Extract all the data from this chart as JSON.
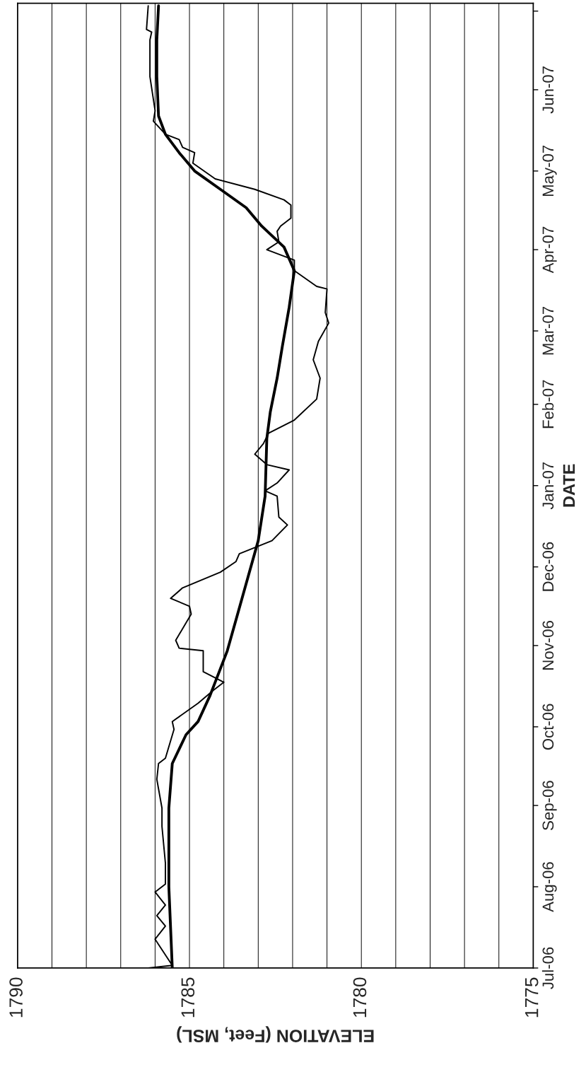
{
  "chart_data": {
    "type": "line",
    "orientation": "horizontal",
    "xlabel": "ELEVATION (Feet, MSL)",
    "ylabel": "DATE",
    "xlim": [
      1790,
      1775
    ],
    "xticks": [
      1790,
      {
        "value": 1789,
        "label": null
      },
      {
        "value": 1788,
        "label": null
      },
      {
        "value": 1787,
        "label": null
      },
      {
        "value": 1786,
        "label": null
      },
      1785,
      {
        "value": 1784,
        "label": null
      },
      {
        "value": 1783,
        "label": null
      },
      {
        "value": 1782,
        "label": null
      },
      {
        "value": 1781,
        "label": null
      },
      1780,
      {
        "value": 1779,
        "label": null
      },
      {
        "value": 1778,
        "label": null
      },
      {
        "value": 1777,
        "label": null
      },
      {
        "value": 1776,
        "label": null
      },
      1775
    ],
    "ylim": [
      "2006-07-01",
      "2007-07-04"
    ],
    "yticks": [
      {
        "value": "2006-07-01",
        "label": "Jul-06"
      },
      {
        "value": "2006-08-01",
        "label": "Aug-06"
      },
      {
        "value": "2006-09-01",
        "label": "Sep-06"
      },
      {
        "value": "2006-10-01",
        "label": "Oct-06"
      },
      {
        "value": "2006-11-01",
        "label": "Nov-06"
      },
      {
        "value": "2006-12-01",
        "label": "Dec-06"
      },
      {
        "value": "2007-01-01",
        "label": "Jan-07"
      },
      {
        "value": "2007-02-01",
        "label": "Feb-07"
      },
      {
        "value": "2007-03-01",
        "label": "Mar-07"
      },
      {
        "value": "2007-04-01",
        "label": "Apr-07"
      },
      {
        "value": "2007-05-01",
        "label": "May-07"
      },
      {
        "value": "2007-06-01",
        "label": "Jun-07"
      },
      {
        "value": "2007-07-01",
        "label": null
      }
    ],
    "grid": "x",
    "legend": false,
    "series": [
      {
        "color": "#000000",
        "line_style": "solid",
        "x": [
          "2006-07-01",
          "2006-08-01",
          "2006-08-31",
          "2006-09-17",
          "2006-09-28",
          "2006-10-03",
          "2006-10-13",
          "2006-10-30",
          "2006-11-13",
          "2006-11-27",
          "2006-12-11",
          "2006-12-28",
          "2007-01-19",
          "2007-01-29",
          "2007-02-11",
          "2007-02-23",
          "2007-03-10",
          "2007-03-24",
          "2007-04-02",
          "2007-04-10",
          "2007-04-17",
          "2007-04-24",
          "2007-05-01",
          "2007-05-08",
          "2007-05-15",
          "2007-05-22",
          "2007-06-06",
          "2007-06-20",
          "2007-07-03"
        ],
        "values": [
          1785.5,
          1785.6,
          1785.6,
          1785.5,
          1785.1,
          1784.75,
          1784.4,
          1783.9,
          1783.6,
          1783.3,
          1783.0,
          1782.8,
          1782.75,
          1782.65,
          1782.45,
          1782.3,
          1782.1,
          1781.95,
          1782.25,
          1782.9,
          1783.35,
          1784.1,
          1784.85,
          1785.3,
          1785.7,
          1785.9,
          1785.95,
          1785.95,
          1785.9
        ]
      },
      {
        "color": "#000000",
        "line_style": "solid",
        "x": [
          "2006-07-01",
          "2006-07-02",
          "2006-07-12",
          "2006-07-17",
          "2006-07-21",
          "2006-07-25",
          "2006-07-30",
          "2006-08-02",
          "2006-08-10",
          "2006-08-24",
          "2006-08-31",
          "2006-09-11",
          "2006-09-17",
          "2006-09-19",
          "2006-09-30",
          "2006-10-03",
          "2006-10-10",
          "2006-10-15",
          "2006-10-18",
          "2006-10-22",
          "2006-10-30",
          "2006-10-31",
          "2006-11-03",
          "2006-11-13",
          "2006-11-16",
          "2006-11-19",
          "2006-11-23",
          "2006-11-29",
          "2006-12-03",
          "2006-12-06",
          "2006-12-11",
          "2006-12-17",
          "2006-12-20",
          "2006-12-28",
          "2006-12-30",
          "2007-01-02",
          "2007-01-07",
          "2007-01-09",
          "2007-01-13",
          "2007-01-17",
          "2007-01-21",
          "2007-01-26",
          "2007-02-03",
          "2007-02-11",
          "2007-02-18",
          "2007-02-25",
          "2007-03-04",
          "2007-03-08",
          "2007-03-17",
          "2007-03-18",
          "2007-03-24",
          "2007-03-28",
          "2007-04-01",
          "2007-04-04",
          "2007-04-08",
          "2007-04-10",
          "2007-04-13",
          "2007-04-18",
          "2007-04-20",
          "2007-04-24",
          "2007-04-28",
          "2007-05-04",
          "2007-05-08",
          "2007-05-10",
          "2007-05-13",
          "2007-05-15",
          "2007-05-20",
          "2007-05-24",
          "2007-06-06",
          "2007-06-20",
          "2007-06-23",
          "2007-06-24",
          "2007-07-03"
        ],
        "values": [
          1786.2,
          1785.5,
          1786.0,
          1785.7,
          1785.95,
          1785.7,
          1786.0,
          1785.7,
          1785.7,
          1785.8,
          1785.8,
          1785.95,
          1785.9,
          1785.7,
          1785.45,
          1785.5,
          1784.75,
          1784.3,
          1784.0,
          1784.6,
          1784.6,
          1785.3,
          1785.4,
          1784.95,
          1785.0,
          1785.55,
          1785.2,
          1784.1,
          1783.65,
          1783.55,
          1782.6,
          1782.15,
          1782.4,
          1782.45,
          1782.8,
          1782.45,
          1782.1,
          1782.75,
          1783.1,
          1782.85,
          1782.7,
          1781.95,
          1781.3,
          1781.2,
          1781.4,
          1781.25,
          1780.95,
          1781.05,
          1781.0,
          1781.3,
          1781.95,
          1781.95,
          1782.75,
          1782.4,
          1782.45,
          1782.35,
          1782.05,
          1782.05,
          1782.25,
          1783.1,
          1784.25,
          1784.9,
          1784.85,
          1785.2,
          1785.3,
          1785.7,
          1786.05,
          1786.0,
          1786.15,
          1786.15,
          1786.1,
          1786.25,
          1786.2
        ]
      }
    ]
  }
}
